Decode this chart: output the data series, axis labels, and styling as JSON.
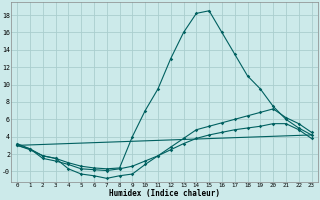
{
  "xlabel": "Humidex (Indice chaleur)",
  "background_color": "#cceaea",
  "grid_color": "#aacece",
  "line_color": "#006060",
  "xlim": [
    -0.5,
    23.5
  ],
  "ylim": [
    -1.2,
    19.5
  ],
  "xticks": [
    0,
    1,
    2,
    3,
    4,
    5,
    6,
    7,
    8,
    9,
    10,
    11,
    12,
    13,
    14,
    15,
    16,
    17,
    18,
    19,
    20,
    21,
    22,
    23
  ],
  "yticks": [
    0,
    2,
    4,
    6,
    8,
    10,
    12,
    14,
    16,
    18
  ],
  "ytick_labels": [
    "-0",
    "2",
    "4",
    "6",
    "8",
    "10",
    "12",
    "14",
    "16",
    "18"
  ],
  "line1_x": [
    0,
    1,
    2,
    3,
    4,
    5,
    6,
    7,
    8,
    9,
    10,
    11,
    12,
    13,
    14,
    15,
    16,
    17,
    18,
    19,
    20,
    21,
    22,
    23
  ],
  "line1_y": [
    3.0,
    2.5,
    1.8,
    1.5,
    1.0,
    0.6,
    0.4,
    0.3,
    0.4,
    4.0,
    7.0,
    9.5,
    13.0,
    16.0,
    18.2,
    18.5,
    16.0,
    13.5,
    11.0,
    9.5,
    7.5,
    6.0,
    5.0,
    4.2
  ],
  "line2_x": [
    0,
    1,
    2,
    3,
    4,
    5,
    6,
    7,
    8,
    9,
    10,
    11,
    12,
    13,
    14,
    15,
    16,
    17,
    18,
    19,
    20,
    21,
    22,
    23
  ],
  "line2_y": [
    3.2,
    2.6,
    1.8,
    1.5,
    0.3,
    -0.3,
    -0.5,
    -0.8,
    -0.5,
    -0.3,
    0.8,
    1.8,
    2.8,
    3.8,
    4.8,
    5.2,
    5.6,
    6.0,
    6.4,
    6.8,
    7.2,
    6.2,
    5.5,
    4.5
  ],
  "line3_x": [
    0,
    1,
    2,
    3,
    4,
    5,
    6,
    7,
    8,
    9,
    10,
    11,
    12,
    13,
    14,
    15,
    16,
    17,
    18,
    19,
    20,
    21,
    22,
    23
  ],
  "line3_y": [
    3.0,
    2.6,
    1.5,
    1.2,
    0.8,
    0.3,
    0.2,
    0.1,
    0.3,
    0.6,
    1.2,
    1.8,
    2.5,
    3.2,
    3.8,
    4.2,
    4.5,
    4.8,
    5.0,
    5.2,
    5.5,
    5.5,
    4.8,
    3.8
  ],
  "line4_x": [
    0,
    23
  ],
  "line4_y": [
    3.0,
    4.2
  ]
}
